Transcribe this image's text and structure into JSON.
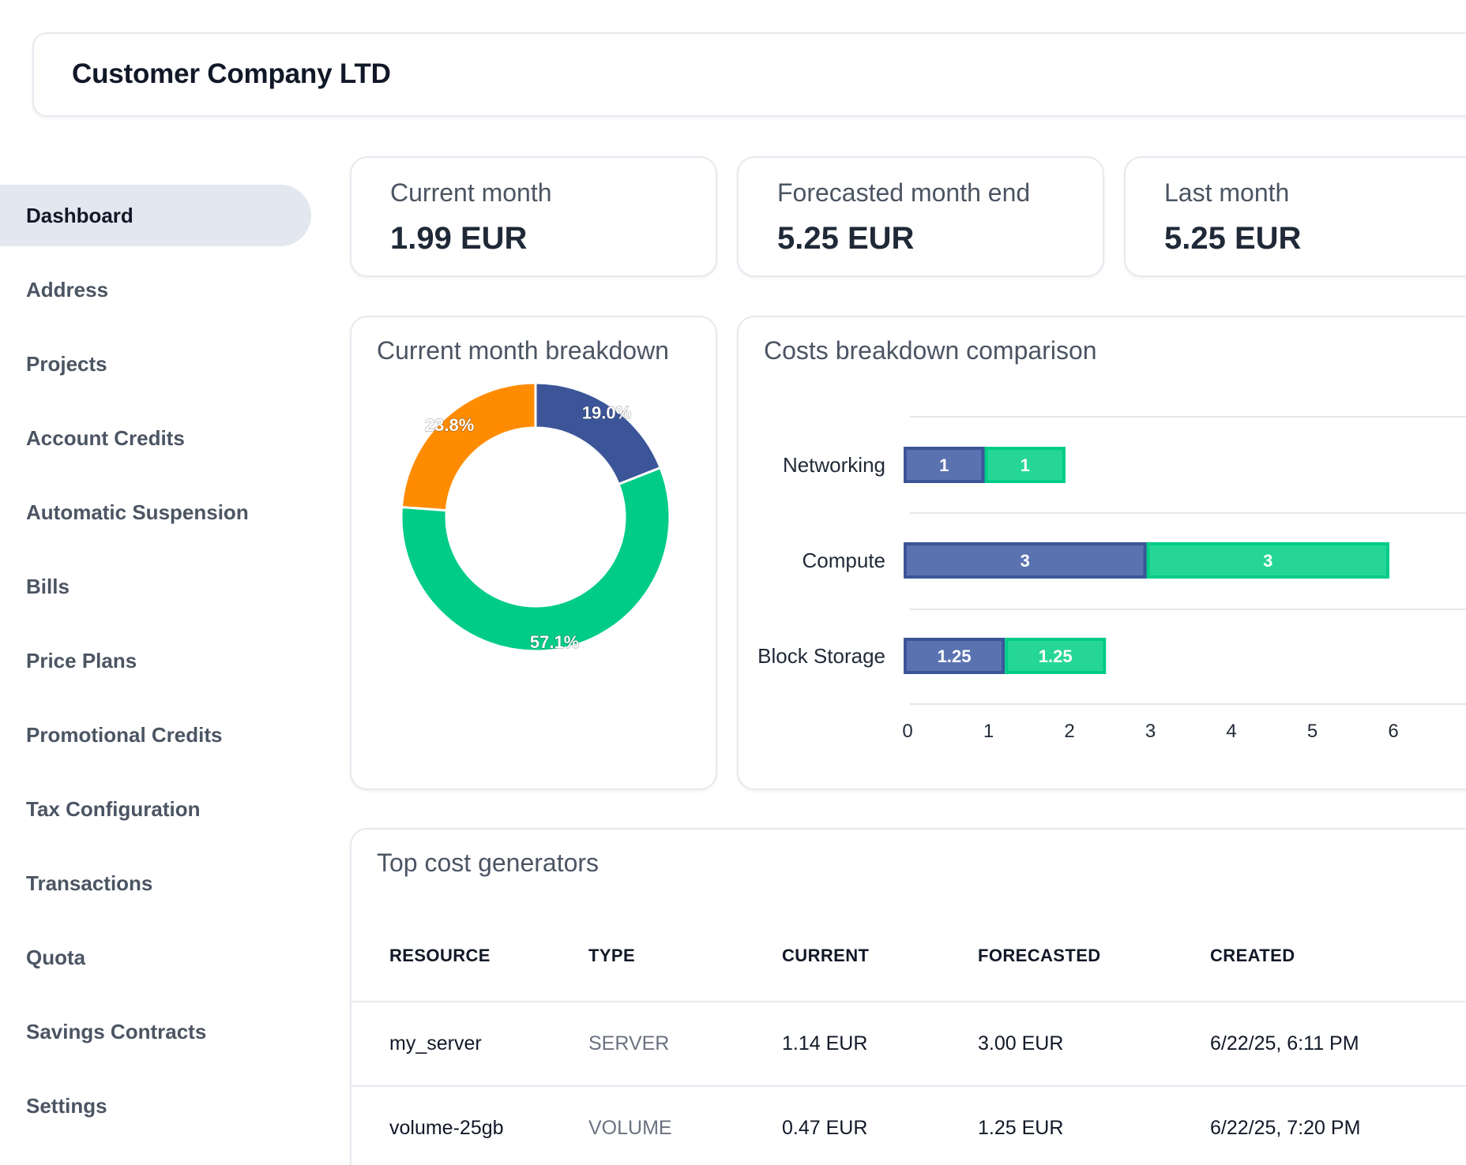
{
  "header": {
    "company_name": "Customer Company LTD"
  },
  "sidebar": {
    "items": [
      {
        "label": "Dashboard",
        "active": true
      },
      {
        "label": "Address"
      },
      {
        "label": "Projects"
      },
      {
        "label": "Account Credits"
      },
      {
        "label": "Automatic Suspension"
      },
      {
        "label": "Bills"
      },
      {
        "label": "Price Plans"
      },
      {
        "label": "Promotional Credits"
      },
      {
        "label": "Tax Configuration"
      },
      {
        "label": "Transactions"
      },
      {
        "label": "Quota"
      },
      {
        "label": "Savings Contracts"
      },
      {
        "label": "Settings"
      }
    ]
  },
  "kpis": [
    {
      "label": "Current month",
      "value": "1.99 EUR"
    },
    {
      "label": "Forecasted month end",
      "value": "5.25 EUR"
    },
    {
      "label": "Last month",
      "value": "5.25 EUR"
    }
  ],
  "breakdown": {
    "title": "Current month breakdown"
  },
  "comparison": {
    "title": "Costs breakdown comparison"
  },
  "chart_data": [
    {
      "type": "pie",
      "title": "Current month breakdown",
      "slices": [
        {
          "value": 19.0,
          "label": "19.0%",
          "color": "#3b5598"
        },
        {
          "value": 57.1,
          "label": "57.1%",
          "color": "#00cc88"
        },
        {
          "value": 23.8,
          "label": "23.8%",
          "color": "#ff8c00"
        }
      ]
    },
    {
      "type": "bar",
      "title": "Costs breakdown comparison",
      "orientation": "horizontal",
      "stacked": true,
      "categories": [
        "Networking",
        "Compute",
        "Block Storage"
      ],
      "series": [
        {
          "values": [
            1,
            3,
            1.25
          ],
          "labels": [
            "1",
            "3",
            "1.25"
          ],
          "color": "#3b5598"
        },
        {
          "values": [
            1,
            3,
            1.25
          ],
          "labels": [
            "1",
            "3",
            "1.25"
          ],
          "color": "#00cc88"
        }
      ],
      "x_ticks": [
        "0",
        "1",
        "2",
        "3",
        "4",
        "5",
        "6"
      ],
      "xlim": [
        0,
        6.5
      ],
      "grid": "horizontal"
    }
  ],
  "top_costs": {
    "title": "Top cost generators",
    "columns": [
      "RESOURCE",
      "TYPE",
      "CURRENT",
      "FORECASTED",
      "CREATED"
    ],
    "rows": [
      {
        "resource": "my_server",
        "type": "SERVER",
        "current": "1.14 EUR",
        "forecasted": "3.00 EUR",
        "created": "6/22/25, 6:11 PM"
      },
      {
        "resource": "volume-25gb",
        "type": "VOLUME",
        "current": "0.47 EUR",
        "forecasted": "1.25 EUR",
        "created": "6/22/25, 7:20 PM"
      }
    ]
  }
}
